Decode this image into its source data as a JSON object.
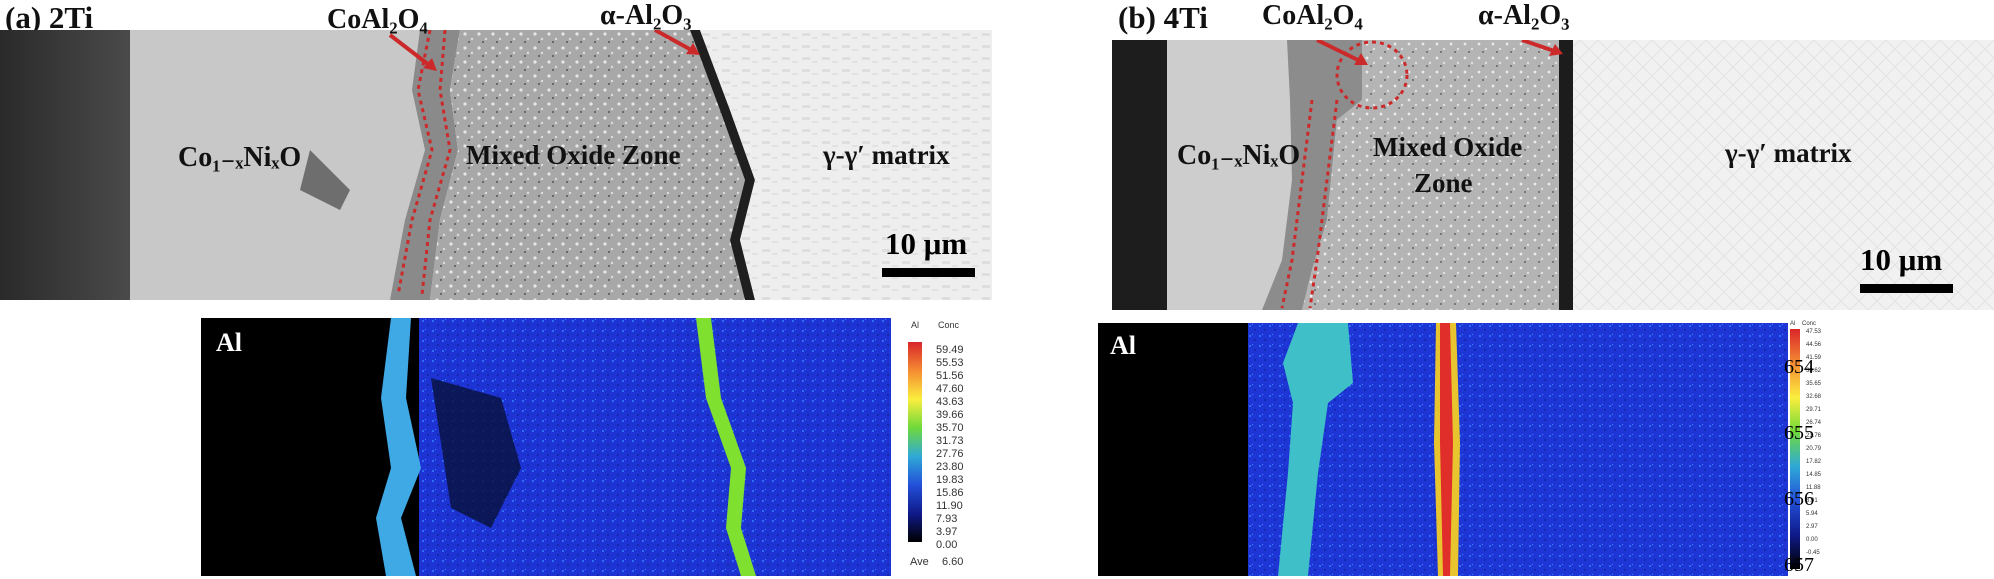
{
  "panel_a": {
    "label": "(a) 2Ti",
    "annotations": {
      "coal2o4": "CoAl₂O₄",
      "alumina": "α-Al₂O₃",
      "coni_oxide": "Co₁₋ₓNiₓO",
      "mixed_zone": "Mixed Oxide Zone",
      "matrix": "γ-γ′ matrix"
    },
    "scale_bar": "10 μm",
    "eds": {
      "element": "Al",
      "legend_header": [
        "Al",
        "Conc"
      ],
      "legend_values": [
        "59.49",
        "55.53",
        "51.56",
        "47.60",
        "43.63",
        "39.66",
        "35.70",
        "31.73",
        "27.76",
        "23.80",
        "19.83",
        "15.86",
        "11.90",
        "7.93",
        "3.97",
        "0.00"
      ],
      "ave_label": "Ave",
      "ave_value": "6.60"
    }
  },
  "panel_b": {
    "label": "(b) 4Ti",
    "annotations": {
      "coal2o4": "CoAl₂O₄",
      "alumina": "α-Al₂O₃",
      "coni_oxide": "Co₁₋ₓNiₓO",
      "mixed_zone_1": "Mixed Oxide",
      "mixed_zone_2": "Zone",
      "matrix": "γ-γ′ matrix"
    },
    "scale_bar": "10 μm",
    "eds": {
      "element": "Al",
      "legend_header": [
        "Al",
        "Conc"
      ],
      "legend_values": [
        "47.53",
        "44.56",
        "41.59",
        "38.62",
        "35.65",
        "32.68",
        "29.71",
        "26.74",
        "23.76",
        "20.79",
        "17.82",
        "14.85",
        "11.88",
        "8.91",
        "5.94",
        "2.97",
        "0.00",
        "-0.45"
      ],
      "overlay_numbers": [
        "654",
        "655",
        "656",
        "657"
      ]
    }
  },
  "legend_colors": [
    "#d9262a",
    "#ee4a2c",
    "#f26a2e",
    "#f58b32",
    "#f7ab36",
    "#f9cd3a",
    "#fbee3e",
    "#b9e93a",
    "#6fd93a",
    "#3fc56a",
    "#2fa9d6",
    "#2c8ee6",
    "#2a6fe4",
    "#2350d9",
    "#1a2fbf",
    "#0f1a8a",
    "#000000",
    "#000000"
  ]
}
